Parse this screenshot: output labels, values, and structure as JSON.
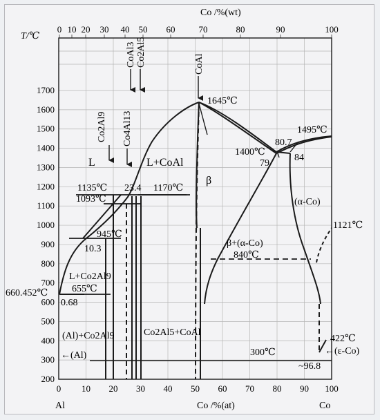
{
  "top_axis": {
    "title": "Co /%(wt)",
    "ticks": [
      "0",
      "10",
      "20",
      "30",
      "40",
      "50",
      "60",
      "70",
      "80",
      "90",
      "100"
    ]
  },
  "bottom_axis": {
    "title": "Co /%(at)",
    "ticks": [
      "0",
      "10",
      "20",
      "30",
      "40",
      "50",
      "60",
      "70",
      "80",
      "90",
      "100"
    ],
    "left_element": "Al",
    "right_element": "Co"
  },
  "y_axis": {
    "title": "T/℃",
    "ticks": [
      "200",
      "300",
      "400",
      "500",
      "600",
      "700",
      "800",
      "900",
      "1000",
      "1100",
      "1200",
      "1300",
      "1400",
      "1500",
      "1600",
      "1700"
    ]
  },
  "compounds_top": {
    "coal3": "CoAl3",
    "co2al5": "Co2Al5",
    "coal": "CoAl",
    "co2al9": "Co2Al9",
    "co4al13": "Co4Al13"
  },
  "phase_labels": {
    "liquid": "L",
    "l_coal": "L+CoAl",
    "beta": "β",
    "alpha_co": "(α-Co)",
    "beta_alpha": "β+(α-Co)",
    "l_co2al9": "L+Co2Al9",
    "al_co2al9": "(Al)+Co2Al9",
    "co2al5_coal": "Co2Al5+CoAl",
    "al": "←(Al)",
    "eps_co": "←(ε-Co)"
  },
  "temperature_labels": {
    "t1645": "1645℃",
    "t1495": "1495℃",
    "t1400": "1400℃",
    "c807": "80.7",
    "c79": "79",
    "c84": "84",
    "t1135": "1135℃",
    "c234": "23.4",
    "t1170": "1170℃",
    "t1093": "1093℃",
    "t945": "945℃",
    "c103": "10.3",
    "t655": "655℃",
    "c068": "0.68",
    "t66045": "660.452℃",
    "t1121": "1121℃",
    "t840": "840℃",
    "t300": "300℃",
    "t422": "422℃",
    "c968": "~96.8"
  }
}
